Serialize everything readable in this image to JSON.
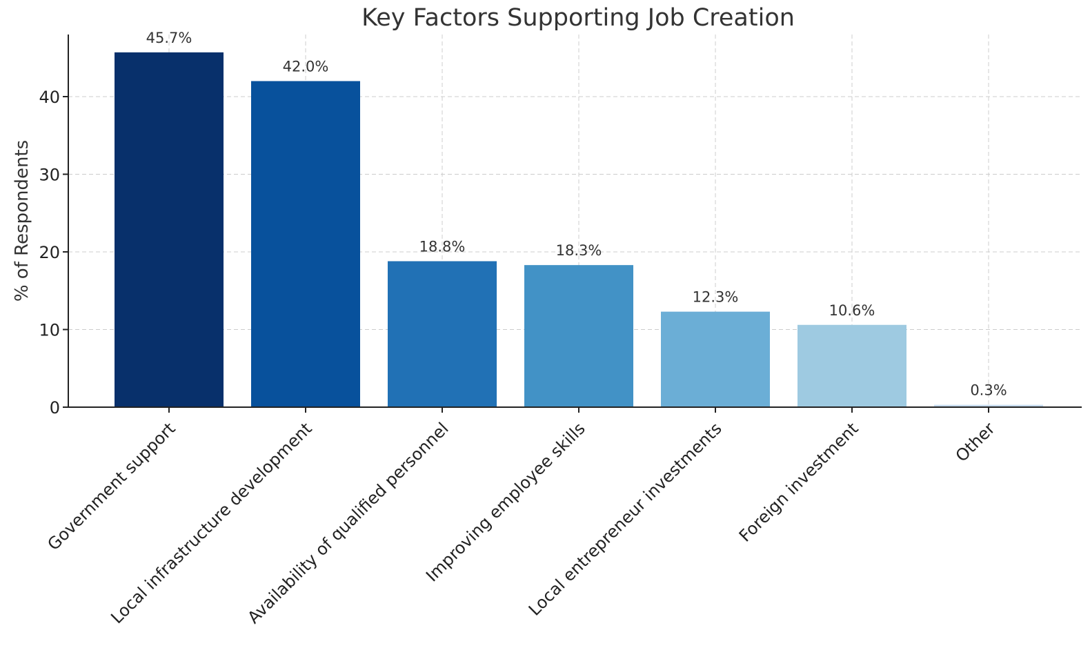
{
  "chart_data": {
    "type": "bar",
    "title": "Key Factors Supporting Job Creation",
    "xlabel": "",
    "ylabel": "% of Respondents",
    "categories": [
      "Government support",
      "Local infrastructure development",
      "Availability of qualified personnel",
      "Improving employee skills",
      "Local entrepreneur investments",
      "Foreign investment",
      "Other"
    ],
    "values": [
      45.7,
      42.0,
      18.8,
      18.3,
      12.3,
      10.6,
      0.3
    ],
    "data_labels": [
      "45.7%",
      "42.0%",
      "18.8%",
      "18.3%",
      "12.3%",
      "10.6%",
      "0.3%"
    ],
    "bar_colors": [
      "#08306b",
      "#08519c",
      "#2171b5",
      "#4292c6",
      "#6baed6",
      "#9ecae1",
      "#c6dbef"
    ],
    "ylim": [
      0,
      48
    ],
    "yticks": [
      0,
      10,
      20,
      30,
      40
    ],
    "grid": true,
    "legend": "none"
  }
}
